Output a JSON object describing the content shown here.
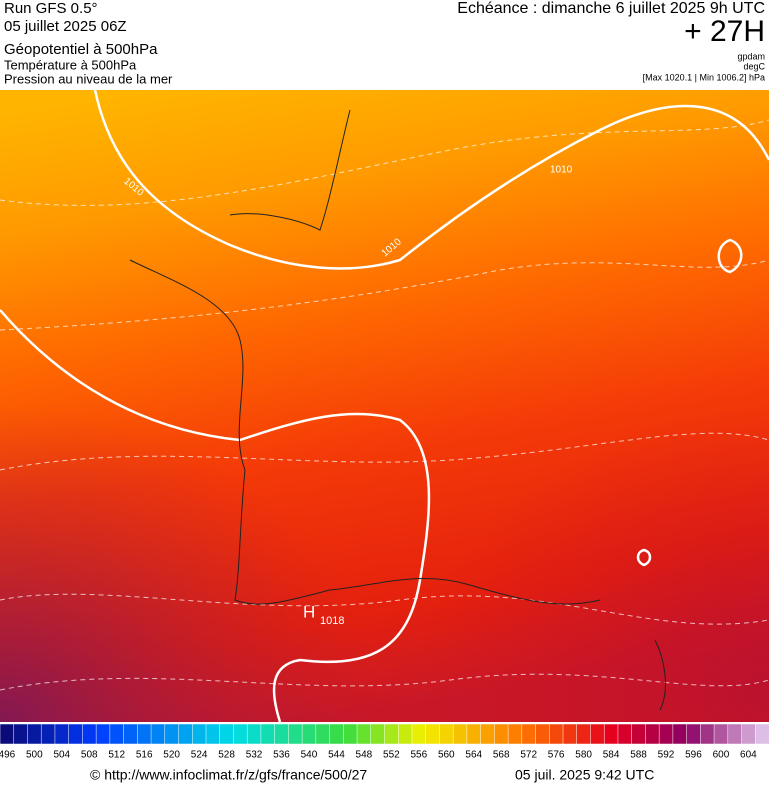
{
  "header": {
    "run": "Run GFS 0.5°",
    "date": "05 juillet 2025 06Z",
    "lines": [
      "Géopotentiel à 500hPa",
      "Température à 500hPa",
      "Pression au niveau de la mer"
    ],
    "echeance": "Echéance : dimanche 6 juillet 2025 9h UTC",
    "offset": "+ 27H",
    "units": [
      "gpdam",
      "degC",
      "[Max 1020.1 | Min 1006.2] hPa"
    ]
  },
  "map": {
    "labels": [
      "1010",
      "1010",
      "1010",
      "H",
      "1018"
    ]
  },
  "colorbar": {
    "labels": [
      496,
      500,
      504,
      508,
      512,
      516,
      520,
      524,
      528,
      532,
      536,
      540,
      544,
      548,
      552,
      556,
      560,
      564,
      568,
      572,
      576,
      580,
      584,
      588,
      592,
      596,
      600,
      604
    ]
  },
  "footer": {
    "source": "© http://www.infoclimat.fr/z/gfs/france/500/27",
    "timestamp": "05 juil. 2025  9:42 UTC"
  }
}
